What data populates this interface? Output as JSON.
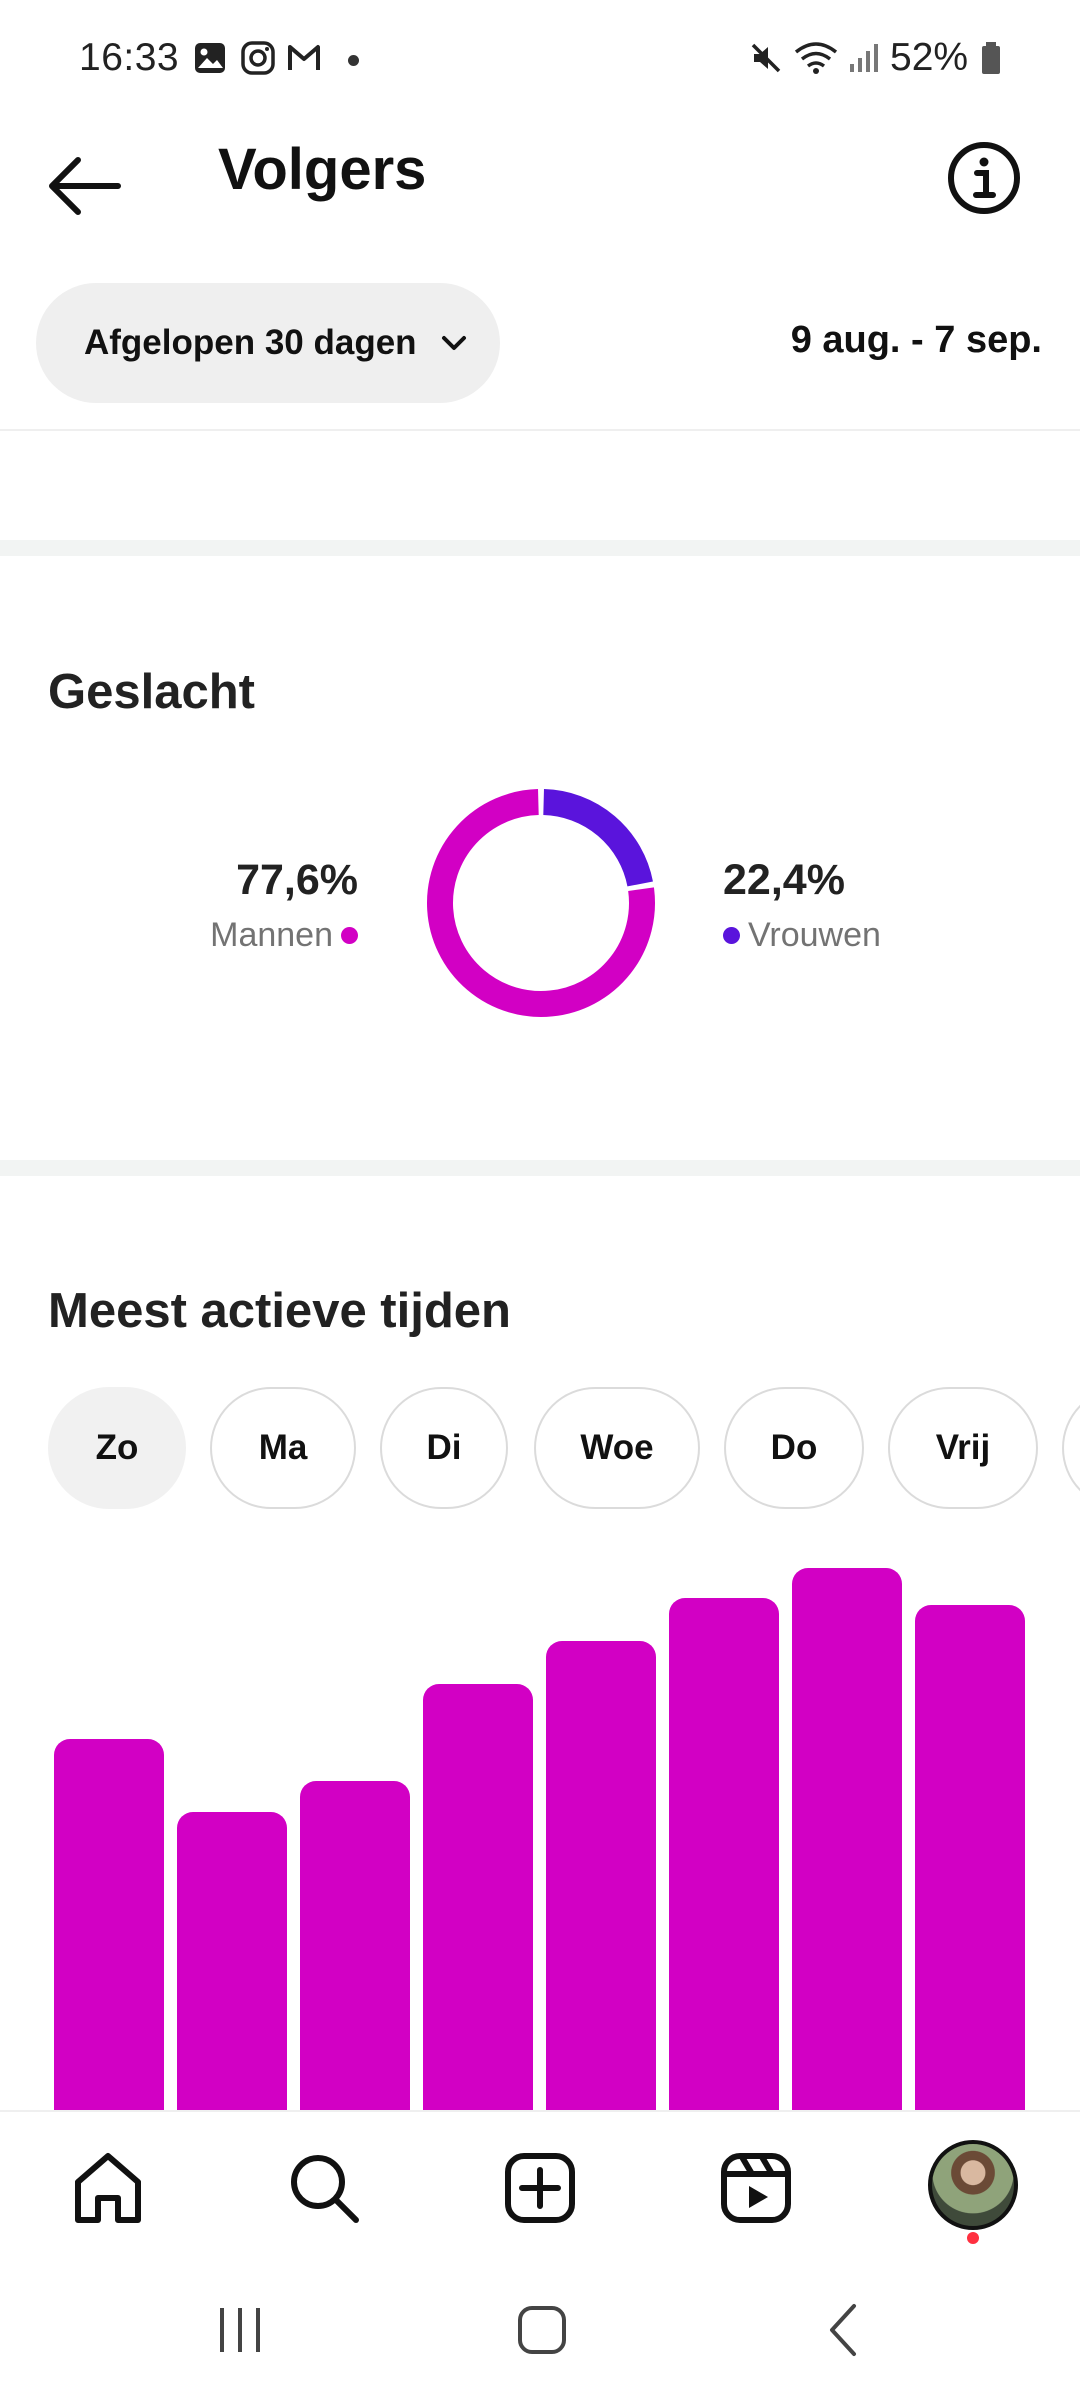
{
  "status_bar": {
    "time": "16:33",
    "battery": "52%",
    "left_icons": [
      "gallery-icon",
      "instagram-icon",
      "gmail-icon"
    ],
    "right_icons": [
      "mute-icon",
      "wifi-icon",
      "signal-icon",
      "battery-icon"
    ]
  },
  "header": {
    "title": "Volgers",
    "back_icon": "arrow-left-icon",
    "info_icon": "info-icon"
  },
  "filter": {
    "range_label": "Afgelopen 30 dagen",
    "date_range": "9 aug. - 7 sep."
  },
  "gender": {
    "title": "Geslacht",
    "men": {
      "percent": "77,6%",
      "label": "Mannen",
      "value": 77.6,
      "color": "#d200c4"
    },
    "women": {
      "percent": "22,4%",
      "label": "Vrouwen",
      "value": 22.4,
      "color": "#5a14dc"
    }
  },
  "active_times": {
    "title": "Meest actieve tijden",
    "days": [
      {
        "label": "Zo",
        "selected": true
      },
      {
        "label": "Ma",
        "selected": false
      },
      {
        "label": "Di",
        "selected": false
      },
      {
        "label": "Woe",
        "selected": false
      },
      {
        "label": "Do",
        "selected": false
      },
      {
        "label": "Vrij",
        "selected": false
      }
    ]
  },
  "chart_data": {
    "type": "bar",
    "values": [
      61,
      49,
      54,
      70,
      77,
      84,
      89,
      83
    ],
    "color": "#d200c4"
  },
  "bottom_nav": {
    "items": [
      "home-icon",
      "search-icon",
      "create-icon",
      "reels-icon",
      "profile-avatar"
    ]
  },
  "colors": {
    "accent_magenta": "#d200c4",
    "accent_purple": "#5a14dc"
  }
}
